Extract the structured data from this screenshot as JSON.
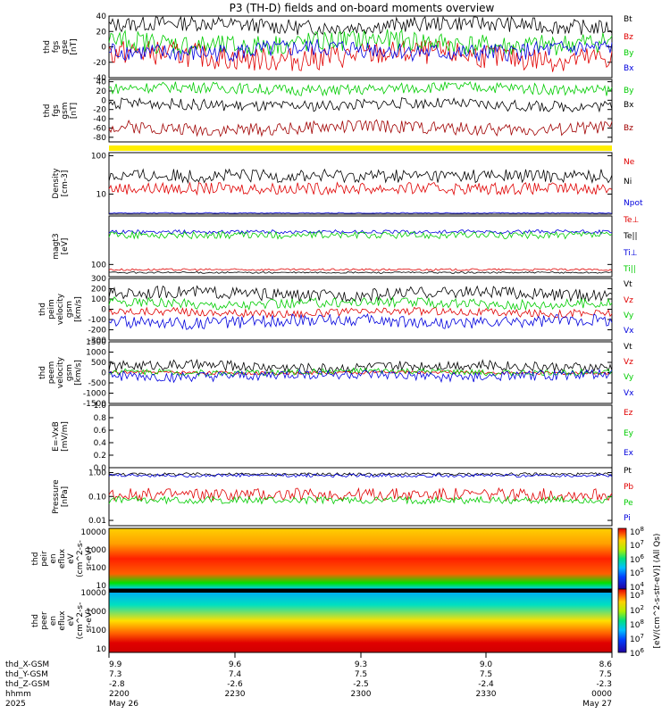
{
  "chart_data": {
    "type": "line",
    "title": "P3 (TH-D) fields and on-board moments overview",
    "panels": [
      {
        "id": "fgs-gse",
        "ylabel": [
          "thd",
          "fgs",
          "gse",
          "[nT]"
        ],
        "yticks": [
          "40",
          "20",
          "0",
          "-20",
          "-40"
        ],
        "ylim": [
          -40,
          40
        ],
        "series": [
          {
            "name": "Bt",
            "color": "#000000",
            "level": 28,
            "amp": 10
          },
          {
            "name": "Bz",
            "color": "#e00000",
            "level": -12,
            "amp": 16
          },
          {
            "name": "By",
            "color": "#00cc00",
            "level": 5,
            "amp": 14
          },
          {
            "name": "Bx",
            "color": "#0000dd",
            "level": -5,
            "amp": 12
          }
        ]
      },
      {
        "id": "fgs-gsm",
        "ylabel": [
          "thd",
          "fgs",
          "gsm",
          "[nT]"
        ],
        "yticks": [
          "40",
          "20",
          "0",
          "-20",
          "-40",
          "-60",
          "-80"
        ],
        "ylim": [
          -90,
          45
        ],
        "series": [
          {
            "name": "By",
            "color": "#00cc00",
            "level": 25,
            "amp": 12
          },
          {
            "name": "Bx",
            "color": "#000000",
            "level": -10,
            "amp": 12
          },
          {
            "name": "Bz",
            "color": "#a00000",
            "level": -60,
            "amp": 14
          }
        ]
      },
      {
        "id": "density",
        "ylabel": [
          "Density",
          "[cm-3]"
        ],
        "yticks": [
          "100",
          "10"
        ],
        "ylim": [
          3,
          120
        ],
        "scale": "log",
        "series": [
          {
            "name": "Ne",
            "color": "#e00000",
            "level": 14,
            "amp": 4
          },
          {
            "name": "Ni",
            "color": "#000000",
            "level": 30,
            "amp": 10
          },
          {
            "name": "Npot",
            "color": "#0000dd",
            "level": 3.2,
            "amp": 0.1
          }
        ]
      },
      {
        "id": "temperature",
        "ylabel": [
          "magt3",
          "[eV]"
        ],
        "yticks": [
          "100"
        ],
        "ylim": [
          30,
          12000
        ],
        "scale": "log",
        "series": [
          {
            "name": "Te⊥",
            "color": "#e00000",
            "level": 60,
            "amp": 5
          },
          {
            "name": "Te||",
            "color": "#000000",
            "level": 45,
            "amp": 3
          },
          {
            "name": "Ti⊥",
            "color": "#0000dd",
            "level": 2500,
            "amp": 400
          },
          {
            "name": "Ti||",
            "color": "#00cc00",
            "level": 1800,
            "amp": 500
          }
        ]
      },
      {
        "id": "peim-velocity",
        "ylabel": [
          "thd",
          "peim",
          "velocity",
          "gsm",
          "[km/s]"
        ],
        "yticks": [
          "300",
          "200",
          "100",
          "0",
          "-100",
          "-200",
          "-300"
        ],
        "ylim": [
          -300,
          300
        ],
        "series": [
          {
            "name": "Vt",
            "color": "#000000",
            "level": 150,
            "amp": 60
          },
          {
            "name": "Vz",
            "color": "#e00000",
            "level": -30,
            "amp": 40
          },
          {
            "name": "Vy",
            "color": "#00cc00",
            "level": 60,
            "amp": 50
          },
          {
            "name": "Vx",
            "color": "#0000dd",
            "level": -120,
            "amp": 60
          }
        ]
      },
      {
        "id": "peem-velocity",
        "ylabel": [
          "thd",
          "peem",
          "velocity",
          "gsm",
          "[km/s]"
        ],
        "yticks": [
          "1500",
          "1000",
          "500",
          "0",
          "-500",
          "-1000",
          "-1500"
        ],
        "ylim": [
          -1500,
          1500
        ],
        "series": [
          {
            "name": "Vt",
            "color": "#000000",
            "level": 300,
            "amp": 250
          },
          {
            "name": "Vz",
            "color": "#e00000",
            "level": 0,
            "amp": 80
          },
          {
            "name": "Vy",
            "color": "#00cc00",
            "level": 30,
            "amp": 150
          },
          {
            "name": "Vx",
            "color": "#0000dd",
            "level": -150,
            "amp": 250
          }
        ]
      },
      {
        "id": "efield",
        "ylabel": [
          "E=-VxB",
          "[mV/m]"
        ],
        "yticks": [
          "1.0",
          "0.8",
          "0.6",
          "0.4",
          "0.2",
          "0.0"
        ],
        "ylim": [
          0,
          1
        ],
        "series": [
          {
            "name": "Ez",
            "color": "#e00000"
          },
          {
            "name": "Ey",
            "color": "#00cc00"
          },
          {
            "name": "Ex",
            "color": "#0000dd"
          }
        ]
      },
      {
        "id": "pressure",
        "ylabel": [
          "Pressure",
          "[nPa]"
        ],
        "yticks": [
          "1.00",
          "0.10",
          "0.01"
        ],
        "ylim": [
          0.006,
          1.6
        ],
        "scale": "log",
        "series": [
          {
            "name": "Pt",
            "color": "#000000",
            "level": 0.85,
            "amp": 0.1
          },
          {
            "name": "Pb",
            "color": "#e00000",
            "level": 0.12,
            "amp": 0.06
          },
          {
            "name": "Pe",
            "color": "#00cc00",
            "level": 0.07,
            "amp": 0.02
          },
          {
            "name": "Pi",
            "color": "#0000dd",
            "level": 0.75,
            "amp": 0.1
          }
        ]
      }
    ],
    "spectrograms": [
      {
        "id": "peir-eflux",
        "ylabel": [
          "thd",
          "peir",
          "en",
          "eflux",
          "eV",
          "(cm^2-s-",
          "sr-eV)"
        ],
        "yticks": [
          "10000",
          "1000",
          "100",
          "10"
        ]
      },
      {
        "id": "peer-eflux",
        "ylabel": [
          "thd",
          "peer",
          "en",
          "eflux",
          "eV",
          "(cm^2-s-",
          "sr-eV)"
        ],
        "yticks": [
          "10000",
          "1000",
          "100",
          "10"
        ]
      }
    ],
    "colorbar": {
      "label": "[eV/(cm^2-s-str-eV)] (All Qs)",
      "ticks": [
        "10",
        "10",
        "10",
        "10",
        "10",
        "10",
        "10",
        "10",
        "10",
        "10"
      ],
      "exponents": [
        "8",
        "7",
        "6",
        "5",
        "4",
        "3",
        "2",
        "8",
        "7",
        "6"
      ]
    },
    "ephemeris": {
      "rows": [
        {
          "label": "thd_X-GSM",
          "values": [
            "9.9",
            "9.6",
            "9.3",
            "9.0",
            "8.6"
          ]
        },
        {
          "label": "thd_Y-GSM",
          "values": [
            "7.3",
            "7.4",
            "7.5",
            "7.5",
            "7.5"
          ]
        },
        {
          "label": "thd_Z-GSM",
          "values": [
            "-2.8",
            "-2.6",
            "-2.5",
            "-2.4",
            "-2.3"
          ]
        },
        {
          "label": "hhmm",
          "values": [
            "2200",
            "2230",
            "2300",
            "2330",
            "0000"
          ]
        }
      ],
      "year": "2025",
      "date_start": "May 26",
      "date_end": "May 27"
    }
  }
}
